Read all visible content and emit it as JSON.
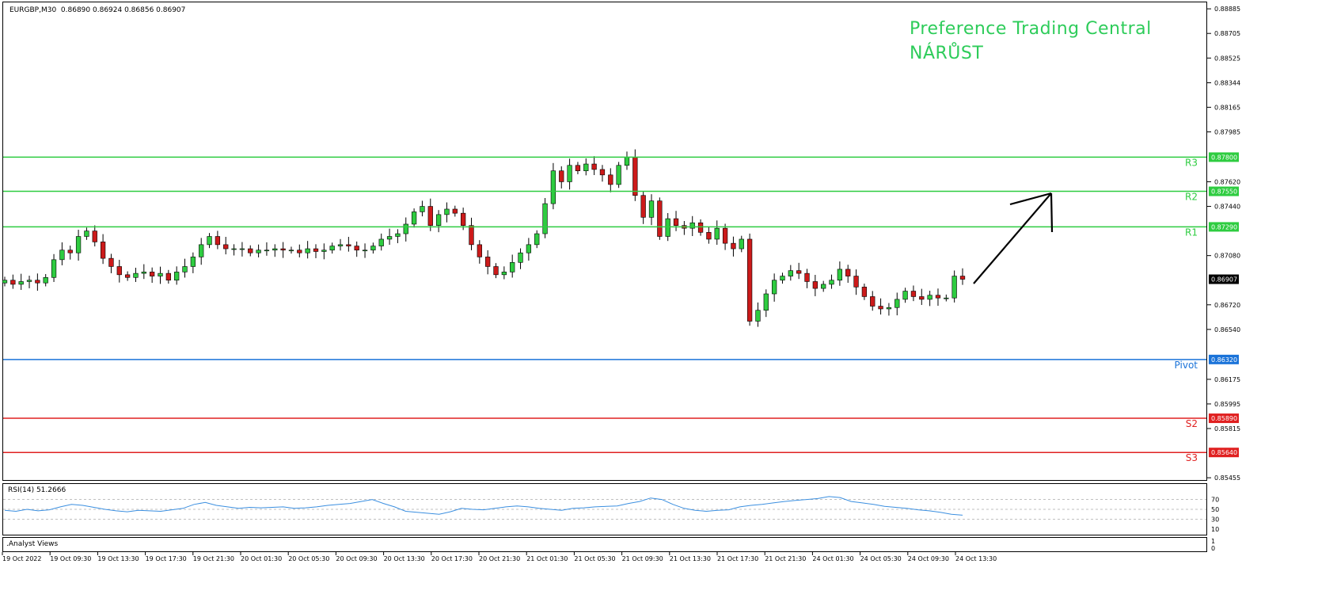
{
  "header": {
    "symbol": "EURGBP,M30",
    "ohlc": "0.86890 0.86924 0.86856 0.86907"
  },
  "overlay": {
    "title": "Preference Trading Central",
    "signal": "NÁRŮST"
  },
  "colors": {
    "bull": "#2ecc40",
    "bear": "#cc1a1a",
    "resistance": "#2ecc40",
    "pivot": "#1a73d9",
    "support": "#e02020",
    "rsi": "#3b8fe0"
  },
  "rsi": {
    "label": "RSI(14) 51.2666",
    "levels": [
      "70",
      "50",
      "30",
      "10"
    ],
    "values": [
      48,
      46,
      50,
      47,
      49,
      55,
      60,
      58,
      54,
      50,
      47,
      45,
      48,
      47,
      46,
      49,
      52,
      60,
      64,
      58,
      55,
      52,
      54,
      53,
      54,
      55,
      52,
      53,
      55,
      58,
      60,
      62,
      66,
      70,
      62,
      55,
      46,
      44,
      42,
      40,
      45,
      52,
      50,
      49,
      52,
      55,
      57,
      55,
      52,
      50,
      48,
      52,
      53,
      55,
      56,
      57,
      62,
      66,
      73,
      70,
      60,
      52,
      48,
      46,
      48,
      49,
      55,
      58,
      60,
      63,
      66,
      68,
      70,
      72,
      76,
      74,
      66,
      63,
      60,
      56,
      54,
      52,
      49,
      47,
      44,
      40,
      38
    ]
  },
  "analyst": {
    "label": ".Analyst Views",
    "axis_values": [
      "1",
      "0"
    ]
  },
  "chart_data": {
    "type": "candlestick",
    "symbol": "EURGBP",
    "timeframe": "M30",
    "title": "EURGBP,M30",
    "ylim": [
      0.8545,
      0.8888
    ],
    "y_ticks": [
      "0.88885",
      "0.88705",
      "0.88525",
      "0.88344",
      "0.88165",
      "0.87985",
      "0.87620",
      "0.87440",
      "0.87080",
      "0.86720",
      "0.86540",
      "0.86175",
      "0.85995",
      "0.85815",
      "0.85455"
    ],
    "x_labels": [
      "19 Oct 2022",
      "19 Oct 09:30",
      "19 Oct 13:30",
      "19 Oct 17:30",
      "19 Oct 21:30",
      "20 Oct 01:30",
      "20 Oct 05:30",
      "20 Oct 09:30",
      "20 Oct 13:30",
      "20 Oct 17:30",
      "20 Oct 21:30",
      "21 Oct 01:30",
      "21 Oct 05:30",
      "21 Oct 09:30",
      "21 Oct 13:30",
      "21 Oct 17:30",
      "21 Oct 21:30",
      "24 Oct 01:30",
      "24 Oct 05:30",
      "24 Oct 09:30",
      "24 Oct 13:30"
    ],
    "current_price": "0.86907",
    "levels": [
      {
        "name": "R3",
        "value": 0.878,
        "tag": "0.87800",
        "kind": "resistance"
      },
      {
        "name": "R2",
        "value": 0.8755,
        "tag": "0.87550",
        "kind": "resistance"
      },
      {
        "name": "R1",
        "value": 0.8729,
        "tag": "0.87290",
        "kind": "resistance"
      },
      {
        "name": "Pivot",
        "value": 0.8632,
        "tag": "0.86320",
        "kind": "pivot"
      },
      {
        "name": "S2",
        "value": 0.8589,
        "tag": "0.85890",
        "kind": "support"
      },
      {
        "name": "S3",
        "value": 0.8564,
        "tag": "0.85640",
        "kind": "support"
      }
    ],
    "closes": [
      0.869,
      0.8687,
      0.8689,
      0.869,
      0.8688,
      0.8692,
      0.8705,
      0.8712,
      0.871,
      0.8722,
      0.8726,
      0.8718,
      0.8706,
      0.87,
      0.8694,
      0.8692,
      0.8695,
      0.8696,
      0.8693,
      0.8695,
      0.869,
      0.8696,
      0.87,
      0.8707,
      0.8716,
      0.8722,
      0.8716,
      0.8713,
      0.8713,
      0.8713,
      0.871,
      0.8712,
      0.8712,
      0.8713,
      0.8712,
      0.8712,
      0.871,
      0.8713,
      0.8711,
      0.8712,
      0.8715,
      0.8716,
      0.8715,
      0.8712,
      0.8712,
      0.8715,
      0.872,
      0.8722,
      0.8724,
      0.8731,
      0.874,
      0.8744,
      0.873,
      0.8738,
      0.8742,
      0.8739,
      0.873,
      0.8716,
      0.8707,
      0.87,
      0.8694,
      0.8696,
      0.8703,
      0.871,
      0.8716,
      0.8724,
      0.8746,
      0.877,
      0.8762,
      0.8774,
      0.877,
      0.8775,
      0.8771,
      0.8767,
      0.876,
      0.8774,
      0.878,
      0.8752,
      0.8736,
      0.8748,
      0.8722,
      0.8735,
      0.873,
      0.8728,
      0.8732,
      0.8725,
      0.872,
      0.8728,
      0.8717,
      0.8713,
      0.872,
      0.866,
      0.8668,
      0.868,
      0.869,
      0.8693,
      0.8697,
      0.8695,
      0.8689,
      0.8684,
      0.8687,
      0.869,
      0.8698,
      0.8693,
      0.8685,
      0.8678,
      0.8671,
      0.8669,
      0.867,
      0.8676,
      0.8682,
      0.8678,
      0.8676,
      0.8679,
      0.8677,
      0.8677,
      0.8693,
      0.86907
    ]
  }
}
